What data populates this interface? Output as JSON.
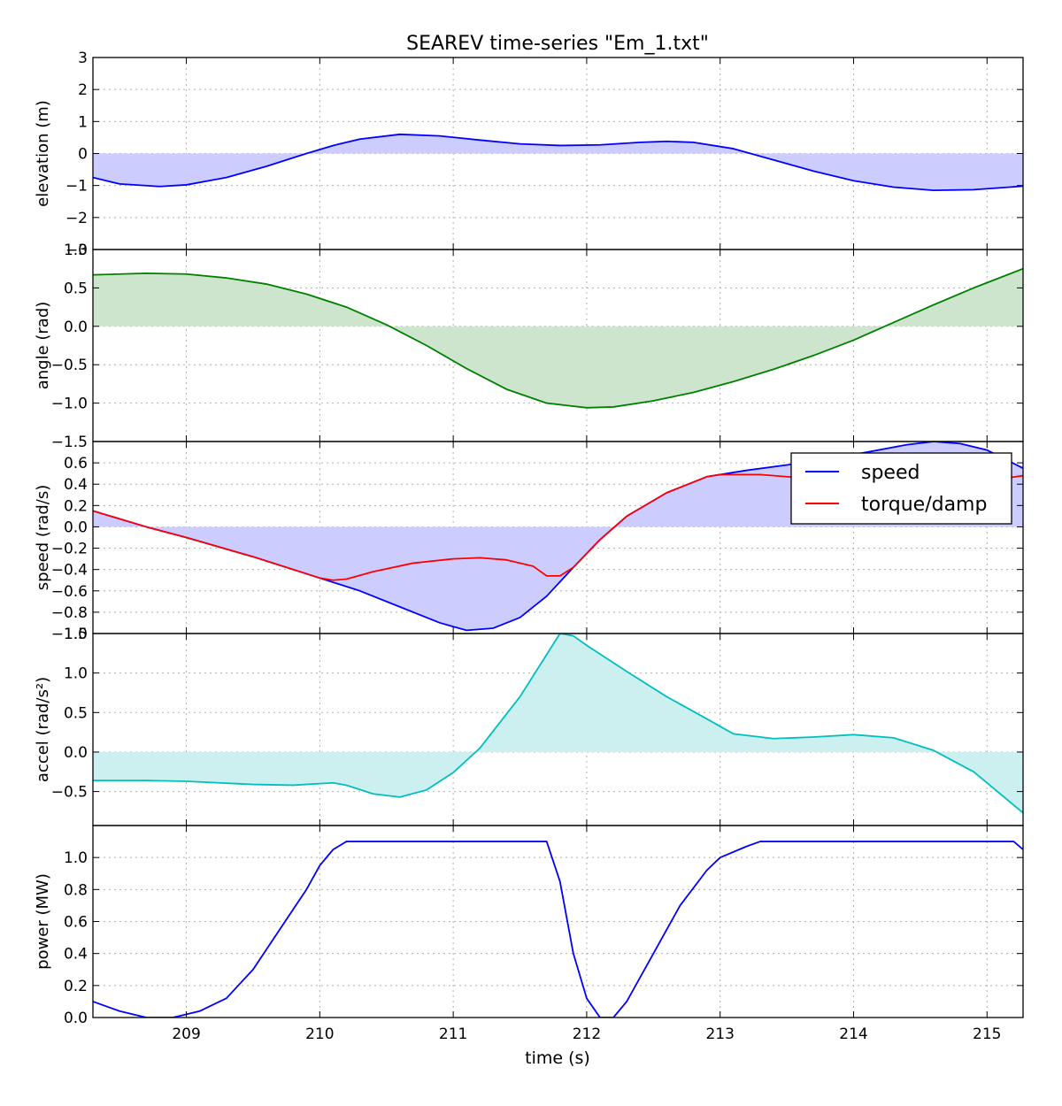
{
  "chart_data": {
    "type": "line",
    "title": "SEAREV time-series \"Em_1.txt\"",
    "xlabel": "time (s)",
    "xlim": [
      208.3,
      215.27
    ],
    "xticks": [
      209,
      210,
      211,
      212,
      213,
      214,
      215
    ],
    "xtick_labels": [
      "209",
      "210",
      "211",
      "212",
      "213",
      "214",
      "215"
    ],
    "grid": true,
    "panels": [
      {
        "id": "elevation",
        "ylabel": "elevation (m)",
        "ylim": [
          -3,
          3
        ],
        "yticks": [
          -3,
          -2,
          -1,
          0,
          1,
          2,
          3
        ],
        "ytick_labels": [
          "−3",
          "−2",
          "−1",
          "0",
          "1",
          "2",
          "3"
        ],
        "fill_to_zero": true,
        "fill_color": "#ccccff",
        "legend": null,
        "series": [
          {
            "color": "#0000ff",
            "x": [
              208.3,
              208.5,
              208.8,
              209.0,
              209.3,
              209.6,
              209.9,
              210.1,
              210.3,
              210.6,
              210.9,
              211.2,
              211.5,
              211.8,
              212.1,
              212.4,
              212.6,
              212.8,
              213.1,
              213.4,
              213.7,
              214.0,
              214.3,
              214.6,
              214.9,
              215.27
            ],
            "y": [
              -0.75,
              -0.95,
              -1.03,
              -0.98,
              -0.75,
              -0.4,
              0.0,
              0.25,
              0.45,
              0.6,
              0.55,
              0.42,
              0.3,
              0.25,
              0.27,
              0.35,
              0.38,
              0.35,
              0.15,
              -0.2,
              -0.55,
              -0.85,
              -1.05,
              -1.15,
              -1.13,
              -1.02
            ]
          }
        ]
      },
      {
        "id": "angle",
        "ylabel": "angle (rad)",
        "ylim": [
          -1.5,
          1.0
        ],
        "yticks": [
          -1.5,
          -1.0,
          -0.5,
          0.0,
          0.5,
          1.0
        ],
        "ytick_labels": [
          "−1.5",
          "−1.0",
          "−0.5",
          "0.0",
          "0.5",
          "1.0"
        ],
        "fill_to_zero": true,
        "fill_color": "#cce5cc",
        "legend": null,
        "series": [
          {
            "color": "#008000",
            "x": [
              208.3,
              208.7,
              209.0,
              209.3,
              209.6,
              209.9,
              210.2,
              210.5,
              210.8,
              211.1,
              211.4,
              211.7,
              212.0,
              212.2,
              212.5,
              212.8,
              213.1,
              213.4,
              213.7,
              214.0,
              214.3,
              214.6,
              214.9,
              215.27
            ],
            "y": [
              0.67,
              0.69,
              0.68,
              0.63,
              0.55,
              0.42,
              0.25,
              0.02,
              -0.25,
              -0.55,
              -0.82,
              -1.0,
              -1.06,
              -1.05,
              -0.97,
              -0.86,
              -0.72,
              -0.56,
              -0.38,
              -0.18,
              0.05,
              0.28,
              0.5,
              0.75
            ]
          }
        ]
      },
      {
        "id": "speed",
        "ylabel": "speed (rad/s)",
        "ylim": [
          -1.0,
          0.8
        ],
        "yticks": [
          -1.0,
          -0.8,
          -0.6,
          -0.4,
          -0.2,
          0.0,
          0.2,
          0.4,
          0.6
        ],
        "ytick_labels": [
          "−1.0",
          "−0.8",
          "−0.6",
          "−0.4",
          "−0.2",
          "0.0",
          "0.2",
          "0.4",
          "0.6"
        ],
        "fill_to_zero": true,
        "fill_color": "#ccccff",
        "legend": {
          "position": "upper right",
          "entries": [
            "speed",
            "torque/damp"
          ]
        },
        "series": [
          {
            "name": "speed",
            "color": "#0000ff",
            "x": [
              208.3,
              208.7,
              209.0,
              209.5,
              210.0,
              210.3,
              210.6,
              210.9,
              211.1,
              211.3,
              211.5,
              211.7,
              211.9,
              212.1,
              212.3,
              212.6,
              212.9,
              213.2,
              213.5,
              213.8,
              214.1,
              214.4,
              214.6,
              214.8,
              215.0,
              215.27
            ],
            "y": [
              0.15,
              0.0,
              -0.1,
              -0.28,
              -0.48,
              -0.6,
              -0.75,
              -0.9,
              -0.97,
              -0.95,
              -0.85,
              -0.65,
              -0.38,
              -0.12,
              0.1,
              0.32,
              0.47,
              0.53,
              0.58,
              0.63,
              0.7,
              0.77,
              0.8,
              0.78,
              0.72,
              0.55
            ]
          },
          {
            "name": "torque/damp",
            "color": "#ff0000",
            "x": [
              208.3,
              208.7,
              209.0,
              209.5,
              210.0,
              210.1,
              210.2,
              210.4,
              210.7,
              211.0,
              211.2,
              211.4,
              211.6,
              211.7,
              211.8,
              211.9,
              212.1,
              212.3,
              212.6,
              212.9,
              213.0,
              213.3,
              213.6,
              213.9,
              214.2,
              214.5,
              214.8,
              215.0,
              215.27
            ],
            "y": [
              0.15,
              0.0,
              -0.1,
              -0.28,
              -0.48,
              -0.5,
              -0.49,
              -0.42,
              -0.34,
              -0.3,
              -0.29,
              -0.31,
              -0.37,
              -0.46,
              -0.46,
              -0.38,
              -0.12,
              0.1,
              0.32,
              0.47,
              0.49,
              0.49,
              0.46,
              0.44,
              0.45,
              0.45,
              0.44,
              0.43,
              0.48
            ]
          }
        ]
      },
      {
        "id": "accel",
        "ylabel": "accel (rad/s²)",
        "ylim": [
          -0.93,
          1.5
        ],
        "yticks": [
          -0.5,
          0.0,
          0.5,
          1.0,
          1.5
        ],
        "ytick_labels": [
          "−0.5",
          "0.0",
          "0.5",
          "1.0",
          "1.5"
        ],
        "fill_to_zero": true,
        "fill_color": "#ccf0f0",
        "legend": null,
        "series": [
          {
            "color": "#00bfbf",
            "x": [
              208.3,
              208.7,
              209.0,
              209.5,
              209.8,
              210.1,
              210.2,
              210.4,
              210.6,
              210.8,
              211.0,
              211.2,
              211.5,
              211.8,
              211.9,
              212.0,
              212.3,
              212.6,
              212.9,
              213.1,
              213.4,
              213.7,
              214.0,
              214.3,
              214.6,
              214.9,
              215.27
            ],
            "y": [
              -0.36,
              -0.36,
              -0.37,
              -0.41,
              -0.42,
              -0.39,
              -0.42,
              -0.53,
              -0.57,
              -0.48,
              -0.26,
              0.05,
              0.7,
              1.5,
              1.47,
              1.35,
              1.02,
              0.7,
              0.42,
              0.23,
              0.17,
              0.19,
              0.22,
              0.18,
              0.02,
              -0.25,
              -0.77
            ]
          }
        ]
      },
      {
        "id": "power",
        "ylabel": "power (MW)",
        "ylim": [
          0.0,
          1.2
        ],
        "yticks": [
          0.0,
          0.2,
          0.4,
          0.6,
          0.8,
          1.0
        ],
        "ytick_labels": [
          "0.0",
          "0.2",
          "0.4",
          "0.6",
          "0.8",
          "1.0"
        ],
        "fill_to_zero": false,
        "fill_color": null,
        "legend": null,
        "series": [
          {
            "color": "#0000ff",
            "x": [
              208.3,
              208.5,
              208.7,
              208.9,
              209.1,
              209.3,
              209.5,
              209.7,
              209.9,
              210.0,
              210.1,
              210.2,
              211.7,
              211.8,
              211.9,
              212.0,
              212.1,
              212.2,
              212.3,
              212.5,
              212.7,
              212.9,
              213.0,
              213.2,
              213.3,
              215.2,
              215.27
            ],
            "y": [
              0.1,
              0.04,
              0.0,
              0.0,
              0.04,
              0.12,
              0.3,
              0.55,
              0.8,
              0.95,
              1.05,
              1.1,
              1.1,
              0.85,
              0.4,
              0.12,
              0.0,
              0.0,
              0.1,
              0.4,
              0.7,
              0.92,
              1.0,
              1.07,
              1.1,
              1.1,
              1.05
            ]
          }
        ]
      }
    ]
  }
}
